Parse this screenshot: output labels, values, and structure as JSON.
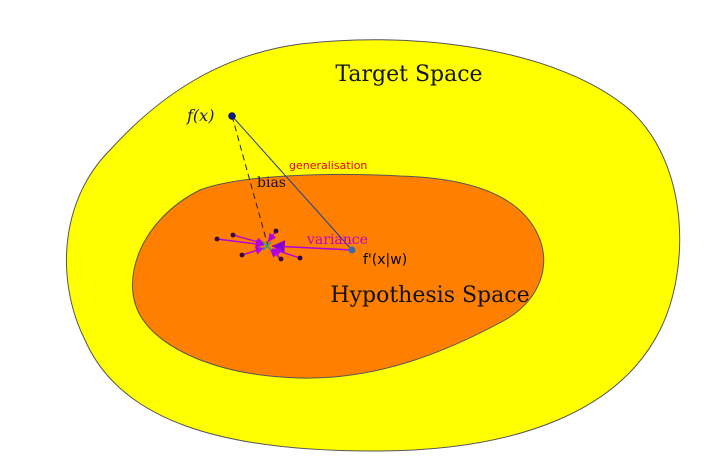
{
  "labels": {
    "target_space": "Target Space",
    "hypothesis_space": "Hypothesis Space",
    "f_x": "f(x)",
    "generalisation": "generalisation",
    "bias": "bias",
    "variance": "variance",
    "f_prime": "f'(x|w)"
  },
  "colors": {
    "target_fill": "#ffff00",
    "hypothesis_fill": "#ff8000",
    "outline": "#555555",
    "navy_point": "#0a1a8a",
    "line_blue": "#1e3fa0",
    "generalisation_text": "#e8001c",
    "variance_text": "#c000d0",
    "variance_arrows": "#b000e0",
    "sample_points": "#330044",
    "center_point": "#2aa080",
    "f_prime_point": "#3a6ab0"
  }
}
